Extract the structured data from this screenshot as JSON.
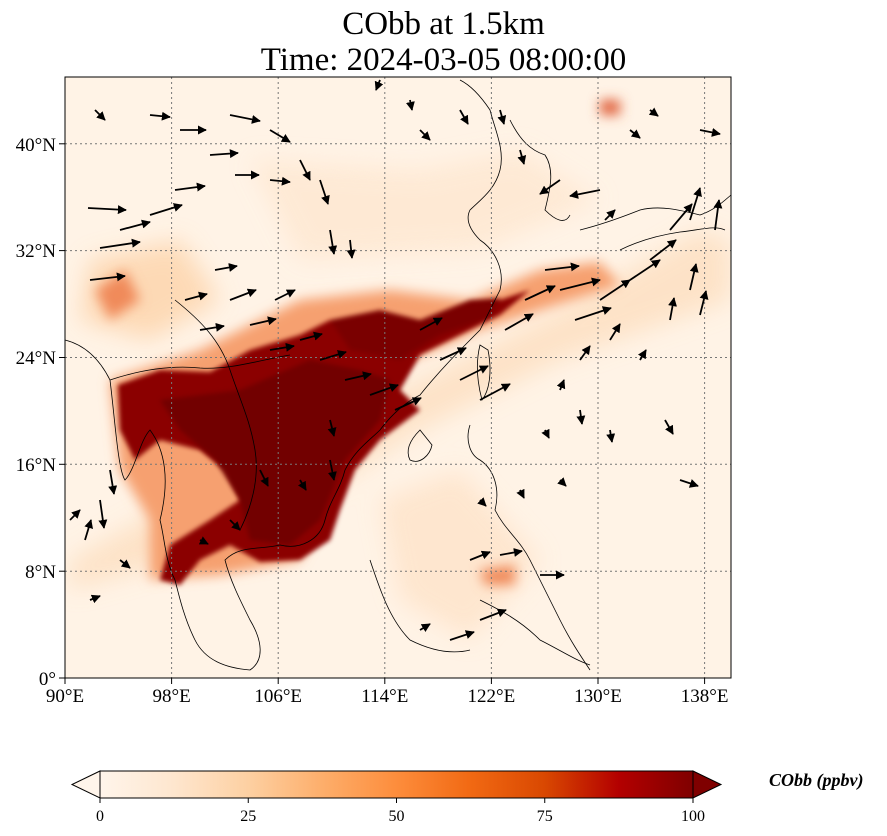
{
  "title_line1": "CObb at 1.5km",
  "title_line2": "Time: 2024-03-05 08:00:00",
  "map": {
    "lon_range": [
      90,
      140
    ],
    "lat_range": [
      0,
      45
    ],
    "x_ticks": [
      "90°E",
      "98°E",
      "106°E",
      "114°E",
      "122°E",
      "130°E",
      "138°E"
    ],
    "x_tick_values": [
      90,
      98,
      106,
      114,
      122,
      130,
      138
    ],
    "y_ticks": [
      "0°",
      "8°N",
      "16°N",
      "24°N",
      "32°N",
      "40°N"
    ],
    "y_tick_values": [
      0,
      8,
      16,
      24,
      32,
      40
    ],
    "gridlines": true
  },
  "colorbar": {
    "label": "CObb (ppbv)",
    "ticks": [
      "0",
      "25",
      "50",
      "75",
      "100"
    ],
    "tick_values": [
      0,
      25,
      50,
      75,
      100
    ],
    "range": [
      0,
      100
    ],
    "extend": "both",
    "colormap": [
      "#fff5eb",
      "#fee6ce",
      "#fdd0a2",
      "#fdae6b",
      "#fd8d3c",
      "#f16913",
      "#d94801",
      "#b30000",
      "#7f0000"
    ]
  }
}
